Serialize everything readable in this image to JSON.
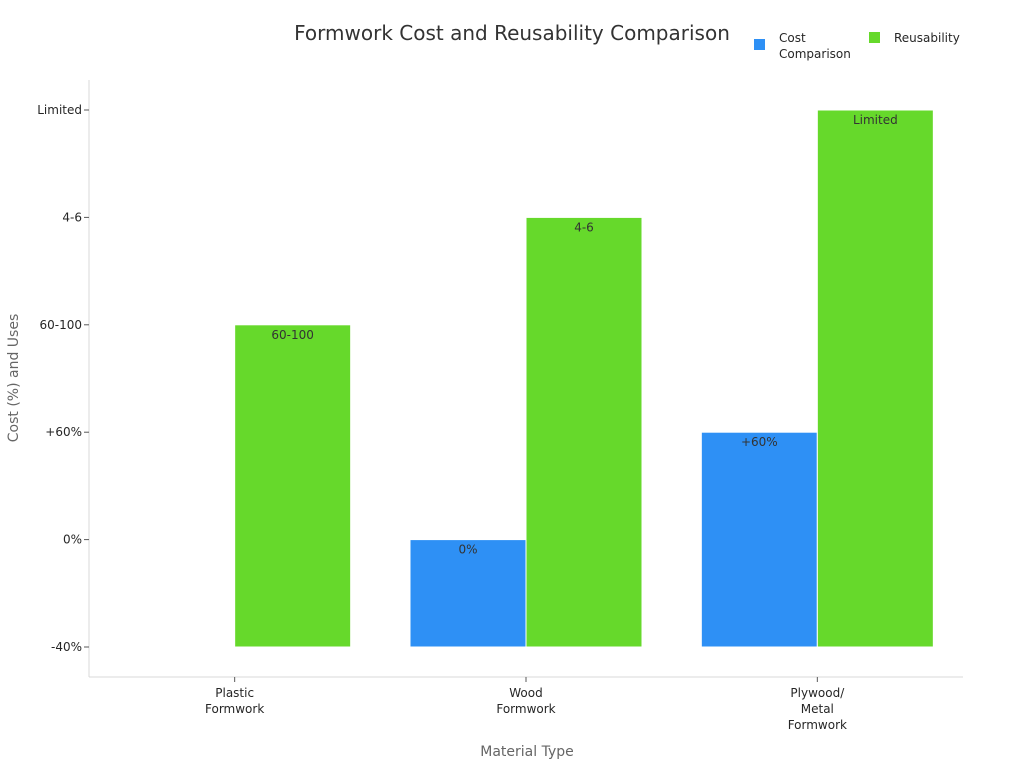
{
  "chart_data": {
    "type": "bar",
    "title": "Formwork Cost and Reusability Comparison",
    "xlabel": "Material Type",
    "ylabel": "Cost (%) and Uses",
    "categories": [
      [
        "Plastic",
        "Formwork"
      ],
      [
        "Wood",
        "Formwork"
      ],
      [
        "Plywood/",
        "Metal",
        "Formwork"
      ]
    ],
    "y_ticks": [
      "-40%",
      "0%",
      "+60%",
      "60-100",
      "4-6",
      "Limited"
    ],
    "ylim": [
      -0.3,
      5.3
    ],
    "baseline": 0,
    "series": [
      {
        "name": [
          "Cost",
          "Comparison"
        ],
        "color": "#2e90f5",
        "values": [
          null,
          1,
          2
        ],
        "labels": [
          "",
          "0%",
          "+60%"
        ]
      },
      {
        "name": [
          "Reusability"
        ],
        "color": "#66d92b",
        "values": [
          3,
          4,
          5
        ],
        "labels": [
          "60-100",
          "4-6",
          "Limited"
        ]
      }
    ],
    "grid": false,
    "legend": "top-right"
  }
}
